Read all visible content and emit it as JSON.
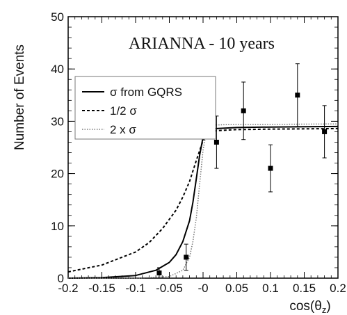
{
  "chart_data": {
    "type": "line",
    "title": "ARIANNA - 10 years",
    "xlabel": "cos(θz)",
    "xlabel_main": "cos(θ",
    "xlabel_sub": "z",
    "xlabel_close": ")",
    "ylabel": "Number of Events",
    "xlim": [
      -0.2,
      0.2
    ],
    "ylim": [
      0,
      50
    ],
    "x_ticks": [
      -0.2,
      -0.15,
      -0.1,
      -0.05,
      0,
      0.05,
      0.1,
      0.15,
      0.2
    ],
    "x_tick_labels": [
      "-0.2",
      "-0.15",
      "-0.1",
      "-0.05",
      "-0",
      "0.05",
      "0.1",
      "0.15",
      "0.2"
    ],
    "y_ticks": [
      0,
      10,
      20,
      30,
      40,
      50
    ],
    "y_tick_labels": [
      "0",
      "10",
      "20",
      "30",
      "40",
      "50"
    ],
    "legend_position": "upper-left",
    "series": [
      {
        "name": "σ from GQRS",
        "style": "solid",
        "x": [
          -0.2,
          -0.15,
          -0.1,
          -0.07,
          -0.05,
          -0.04,
          -0.03,
          -0.02,
          -0.015,
          -0.01,
          -0.005,
          0,
          0.005,
          0.01,
          0.02,
          0.05,
          0.1,
          0.15,
          0.2
        ],
        "y": [
          0,
          0.1,
          0.5,
          1.5,
          3.0,
          4.5,
          7.0,
          11.0,
          14.5,
          19.0,
          23.5,
          27.0,
          28.0,
          28.4,
          28.6,
          28.8,
          28.9,
          28.95,
          29.0
        ]
      },
      {
        "name": "1/2 σ",
        "style": "dashed",
        "x": [
          -0.2,
          -0.15,
          -0.1,
          -0.08,
          -0.06,
          -0.04,
          -0.03,
          -0.02,
          -0.01,
          0,
          0.005,
          0.01,
          0.02,
          0.05,
          0.1,
          0.15,
          0.2
        ],
        "y": [
          1.2,
          2.5,
          5.0,
          6.8,
          9.5,
          13.0,
          15.5,
          18.5,
          22.5,
          26.3,
          27.2,
          27.8,
          28.2,
          28.4,
          28.5,
          28.55,
          28.6
        ]
      },
      {
        "name": "2 x σ",
        "style": "dotted",
        "x": [
          -0.2,
          -0.1,
          -0.05,
          -0.03,
          -0.02,
          -0.015,
          -0.01,
          -0.005,
          0,
          0.005,
          0.01,
          0.02,
          0.05,
          0.1,
          0.15,
          0.2
        ],
        "y": [
          0,
          0,
          0.3,
          1.5,
          4.0,
          7.0,
          11.5,
          18.0,
          24.5,
          28.0,
          29.0,
          29.3,
          29.4,
          29.4,
          29.45,
          29.5
        ]
      }
    ],
    "points": {
      "name": "data",
      "x": [
        -0.065,
        -0.025,
        0.02,
        0.06,
        0.1,
        0.14,
        0.18
      ],
      "y": [
        1,
        4,
        26,
        32,
        21,
        35,
        28
      ],
      "err": [
        1,
        2.5,
        5,
        5.5,
        4.5,
        6,
        5
      ]
    },
    "colors": {
      "axis": "#000000",
      "solid": "#000000",
      "dashed": "#000000",
      "dotted": "#777777",
      "points": "#000000"
    }
  }
}
